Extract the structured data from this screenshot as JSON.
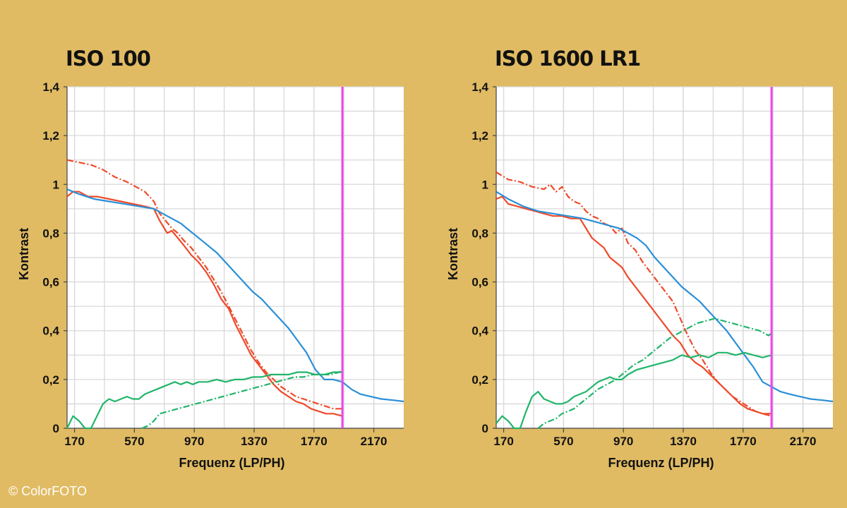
{
  "credit": "© ColorFOTO",
  "colors": {
    "background": "#e0bb63",
    "red": "#ee4a2a",
    "blue": "#2a8fd8",
    "green": "#21b56a",
    "limit": "#ee45e8",
    "grid": "#d8d8d8"
  },
  "chart_data": [
    {
      "type": "line",
      "title": "ISO 100",
      "xlabel": "Frequenz (LP/PH)",
      "ylabel": "Kontrast",
      "xlim": [
        120,
        2370
      ],
      "ylim": [
        0,
        1.4
      ],
      "xticks": [
        170,
        570,
        970,
        1370,
        1770,
        2170
      ],
      "xtick_labels": [
        "170",
        "570",
        "970",
        "1370",
        "1770",
        "2170"
      ],
      "yticks": [
        0,
        0.2,
        0.4,
        0.6,
        0.8,
        1,
        1.2,
        1.4
      ],
      "ytick_labels": [
        "0",
        "0,2",
        "0,4",
        "0,6",
        "0,8",
        "1",
        "1,2",
        "1,4"
      ],
      "grid": true,
      "vline": 1960,
      "series": [
        {
          "color": "red",
          "style": "solid",
          "x": [
            120,
            160,
            200,
            260,
            320,
            400,
            480,
            560,
            640,
            700,
            740,
            790,
            820,
            860,
            900,
            950,
            1000,
            1050,
            1100,
            1150,
            1200,
            1250,
            1300,
            1350,
            1400,
            1450,
            1500,
            1550,
            1600,
            1650,
            1700,
            1750,
            1800,
            1850,
            1900,
            1960
          ],
          "y": [
            0.95,
            0.97,
            0.97,
            0.95,
            0.95,
            0.94,
            0.93,
            0.92,
            0.91,
            0.9,
            0.85,
            0.8,
            0.81,
            0.78,
            0.75,
            0.71,
            0.68,
            0.64,
            0.59,
            0.53,
            0.49,
            0.42,
            0.36,
            0.3,
            0.26,
            0.22,
            0.18,
            0.15,
            0.13,
            0.11,
            0.1,
            0.08,
            0.07,
            0.06,
            0.06,
            0.05
          ]
        },
        {
          "color": "red",
          "style": "dashdot",
          "x": [
            120,
            200,
            280,
            360,
            440,
            520,
            580,
            640,
            700,
            740,
            780,
            820,
            860,
            900,
            950,
            1000,
            1050,
            1100,
            1150,
            1200,
            1250,
            1300,
            1350,
            1400,
            1450,
            1500,
            1550,
            1600,
            1650,
            1700,
            1750,
            1800,
            1850,
            1900,
            1960
          ],
          "y": [
            1.1,
            1.09,
            1.08,
            1.06,
            1.03,
            1.01,
            0.99,
            0.97,
            0.93,
            0.88,
            0.85,
            0.82,
            0.8,
            0.77,
            0.74,
            0.7,
            0.66,
            0.61,
            0.56,
            0.5,
            0.44,
            0.38,
            0.32,
            0.27,
            0.23,
            0.2,
            0.17,
            0.15,
            0.13,
            0.12,
            0.11,
            0.1,
            0.09,
            0.08,
            0.08
          ]
        },
        {
          "color": "blue",
          "style": "solid",
          "x": [
            120,
            200,
            300,
            400,
            500,
            600,
            700,
            760,
            820,
            880,
            940,
            1000,
            1060,
            1120,
            1180,
            1240,
            1300,
            1360,
            1420,
            1480,
            1540,
            1600,
            1660,
            1720,
            1780,
            1840,
            1900,
            1960,
            2020,
            2080,
            2150,
            2220,
            2300,
            2370
          ],
          "y": [
            0.98,
            0.96,
            0.94,
            0.93,
            0.92,
            0.91,
            0.9,
            0.88,
            0.86,
            0.84,
            0.81,
            0.78,
            0.75,
            0.72,
            0.68,
            0.64,
            0.6,
            0.56,
            0.53,
            0.49,
            0.45,
            0.41,
            0.36,
            0.31,
            0.24,
            0.2,
            0.2,
            0.19,
            0.16,
            0.14,
            0.13,
            0.12,
            0.115,
            0.11
          ]
        },
        {
          "color": "green",
          "style": "solid",
          "x": [
            120,
            160,
            200,
            240,
            280,
            320,
            360,
            400,
            440,
            480,
            520,
            560,
            600,
            640,
            680,
            720,
            760,
            800,
            840,
            880,
            920,
            960,
            1000,
            1060,
            1120,
            1180,
            1240,
            1300,
            1360,
            1420,
            1480,
            1540,
            1600,
            1660,
            1720,
            1780,
            1840,
            1900,
            1960
          ],
          "y": [
            0,
            0.05,
            0.03,
            0,
            0,
            0.05,
            0.1,
            0.12,
            0.11,
            0.12,
            0.13,
            0.12,
            0.12,
            0.14,
            0.15,
            0.16,
            0.17,
            0.18,
            0.19,
            0.18,
            0.19,
            0.18,
            0.19,
            0.19,
            0.2,
            0.19,
            0.2,
            0.2,
            0.21,
            0.21,
            0.22,
            0.22,
            0.22,
            0.23,
            0.23,
            0.22,
            0.22,
            0.23,
            0.23
          ]
        },
        {
          "color": "green",
          "style": "dashdot",
          "x": [
            620,
            660,
            700,
            740,
            800,
            860,
            920,
            980,
            1040,
            1100,
            1160,
            1220,
            1280,
            1340,
            1400,
            1460,
            1520,
            1580,
            1640,
            1700,
            1760,
            1820,
            1880,
            1940,
            1960
          ],
          "y": [
            0.0,
            0.01,
            0.03,
            0.06,
            0.07,
            0.08,
            0.09,
            0.1,
            0.11,
            0.12,
            0.13,
            0.14,
            0.15,
            0.16,
            0.17,
            0.18,
            0.19,
            0.2,
            0.21,
            0.21,
            0.22,
            0.22,
            0.22,
            0.23,
            0.24
          ]
        }
      ]
    },
    {
      "type": "line",
      "title": "ISO 1600 LR1",
      "xlabel": "Frequenz (LP/PH)",
      "ylabel": "Kontrast",
      "xlim": [
        120,
        2370
      ],
      "ylim": [
        0,
        1.4
      ],
      "xticks": [
        170,
        570,
        970,
        1370,
        1770,
        2170
      ],
      "xtick_labels": [
        "170",
        "570",
        "970",
        "1370",
        "1770",
        "2170"
      ],
      "yticks": [
        0,
        0.2,
        0.4,
        0.6,
        0.8,
        1,
        1.2,
        1.4
      ],
      "ytick_labels": [
        "0",
        "0,2",
        "0,4",
        "0,6",
        "0,8",
        "1",
        "1,2",
        "1,4"
      ],
      "grid": true,
      "vline": 1960,
      "series": [
        {
          "color": "red",
          "style": "solid",
          "x": [
            120,
            160,
            200,
            260,
            320,
            380,
            440,
            500,
            560,
            620,
            680,
            720,
            760,
            800,
            840,
            880,
            920,
            960,
            1000,
            1050,
            1100,
            1150,
            1200,
            1250,
            1300,
            1350,
            1400,
            1450,
            1500,
            1550,
            1600,
            1650,
            1700,
            1750,
            1800,
            1850,
            1900,
            1960
          ],
          "y": [
            0.94,
            0.95,
            0.92,
            0.91,
            0.9,
            0.89,
            0.88,
            0.87,
            0.87,
            0.86,
            0.86,
            0.82,
            0.78,
            0.76,
            0.74,
            0.7,
            0.68,
            0.66,
            0.62,
            0.58,
            0.54,
            0.5,
            0.46,
            0.42,
            0.38,
            0.35,
            0.3,
            0.27,
            0.25,
            0.22,
            0.19,
            0.16,
            0.13,
            0.1,
            0.08,
            0.07,
            0.06,
            0.06
          ]
        },
        {
          "color": "red",
          "style": "dashdot",
          "x": [
            120,
            200,
            280,
            360,
            440,
            480,
            520,
            560,
            600,
            640,
            680,
            720,
            760,
            800,
            840,
            880,
            920,
            960,
            1000,
            1050,
            1100,
            1150,
            1200,
            1250,
            1300,
            1350,
            1400,
            1450,
            1500,
            1550,
            1600,
            1650,
            1700,
            1750,
            1800,
            1850,
            1900,
            1960
          ],
          "y": [
            1.05,
            1.02,
            1.01,
            0.99,
            0.98,
            1.0,
            0.97,
            0.99,
            0.95,
            0.93,
            0.92,
            0.89,
            0.87,
            0.86,
            0.84,
            0.83,
            0.8,
            0.82,
            0.76,
            0.73,
            0.68,
            0.64,
            0.6,
            0.56,
            0.52,
            0.45,
            0.38,
            0.32,
            0.28,
            0.23,
            0.19,
            0.16,
            0.13,
            0.11,
            0.09,
            0.07,
            0.06,
            0.05
          ]
        },
        {
          "color": "blue",
          "style": "solid",
          "x": [
            120,
            200,
            300,
            400,
            500,
            600,
            700,
            760,
            820,
            880,
            940,
            1000,
            1060,
            1120,
            1180,
            1240,
            1300,
            1360,
            1420,
            1480,
            1540,
            1600,
            1660,
            1720,
            1780,
            1840,
            1900,
            1960,
            2020,
            2080,
            2150,
            2220,
            2300,
            2370
          ],
          "y": [
            0.97,
            0.94,
            0.91,
            0.89,
            0.88,
            0.87,
            0.86,
            0.85,
            0.84,
            0.83,
            0.82,
            0.8,
            0.78,
            0.75,
            0.7,
            0.66,
            0.62,
            0.58,
            0.55,
            0.52,
            0.48,
            0.44,
            0.4,
            0.35,
            0.3,
            0.25,
            0.19,
            0.17,
            0.15,
            0.14,
            0.13,
            0.12,
            0.115,
            0.11
          ]
        },
        {
          "color": "green",
          "style": "solid",
          "x": [
            120,
            160,
            200,
            240,
            280,
            320,
            360,
            400,
            440,
            480,
            520,
            560,
            600,
            640,
            680,
            720,
            760,
            800,
            840,
            880,
            920,
            960,
            1000,
            1060,
            1120,
            1180,
            1240,
            1300,
            1360,
            1420,
            1480,
            1540,
            1600,
            1660,
            1720,
            1780,
            1840,
            1900,
            1960
          ],
          "y": [
            0.02,
            0.05,
            0.03,
            0,
            0,
            0.07,
            0.13,
            0.15,
            0.12,
            0.11,
            0.1,
            0.1,
            0.11,
            0.13,
            0.14,
            0.15,
            0.17,
            0.19,
            0.2,
            0.21,
            0.2,
            0.2,
            0.22,
            0.24,
            0.25,
            0.26,
            0.27,
            0.28,
            0.3,
            0.29,
            0.3,
            0.29,
            0.31,
            0.31,
            0.3,
            0.31,
            0.3,
            0.29,
            0.3
          ]
        },
        {
          "color": "green",
          "style": "dashdot",
          "x": [
            400,
            440,
            480,
            520,
            560,
            600,
            640,
            680,
            720,
            760,
            800,
            860,
            920,
            980,
            1040,
            1100,
            1160,
            1220,
            1280,
            1340,
            1400,
            1460,
            1520,
            1580,
            1640,
            1700,
            1760,
            1820,
            1880,
            1940,
            1960
          ],
          "y": [
            0.0,
            0.02,
            0.03,
            0.04,
            0.06,
            0.07,
            0.08,
            0.1,
            0.12,
            0.14,
            0.16,
            0.18,
            0.2,
            0.23,
            0.26,
            0.28,
            0.31,
            0.34,
            0.37,
            0.39,
            0.41,
            0.43,
            0.44,
            0.45,
            0.44,
            0.43,
            0.42,
            0.41,
            0.4,
            0.38,
            0.39
          ]
        }
      ]
    }
  ]
}
